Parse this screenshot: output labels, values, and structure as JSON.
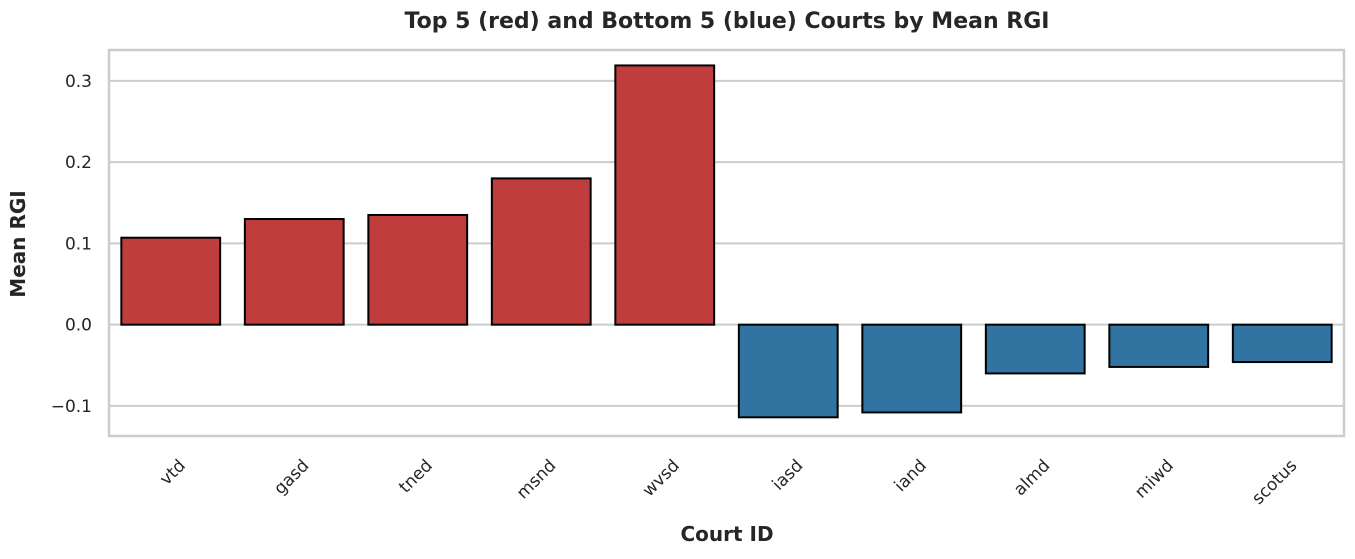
{
  "chart_data": {
    "type": "bar",
    "title": "Top 5 (red) and Bottom 5 (blue) Courts by Mean RGI",
    "xlabel": "Court ID",
    "ylabel": "Mean RGI",
    "categories": [
      "vtd",
      "gasd",
      "tned",
      "msnd",
      "wvsd",
      "iasd",
      "iand",
      "almd",
      "miwd",
      "scotus"
    ],
    "values": [
      0.107,
      0.13,
      0.135,
      0.18,
      0.319,
      -0.114,
      -0.108,
      -0.06,
      -0.052,
      -0.046
    ],
    "bar_colors": [
      "#c03d3e",
      "#c03d3e",
      "#c03d3e",
      "#c03d3e",
      "#c03d3e",
      "#3274a1",
      "#3274a1",
      "#3274a1",
      "#3274a1",
      "#3274a1"
    ],
    "ylim": [
      -0.137,
      0.338
    ],
    "yticks": [
      -0.1,
      0.0,
      0.1,
      0.2,
      0.3
    ],
    "ytick_labels": [
      "−0.1",
      "0.0",
      "0.1",
      "0.2",
      "0.3"
    ],
    "grid": true,
    "legend": "none"
  }
}
